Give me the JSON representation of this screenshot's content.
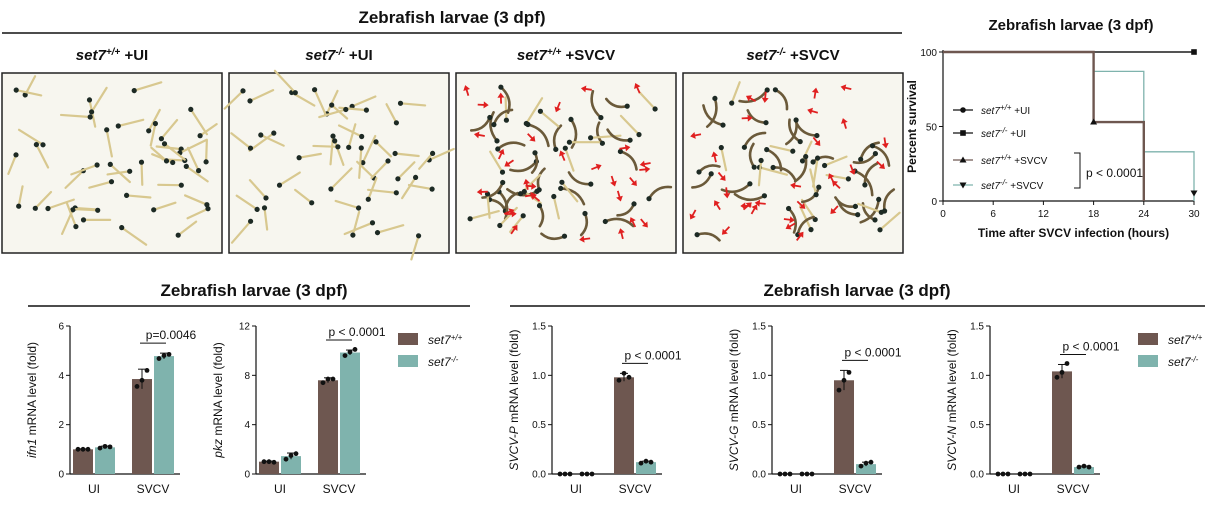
{
  "colors": {
    "wt": "#6e5750",
    "ko": "#7fb3ad",
    "arrow": "#e02020",
    "frame": "#222222",
    "plate": "#f7f6ef"
  },
  "top": {
    "header": "Zebrafish larvae (3 dpf)",
    "panels": [
      {
        "base": "set7",
        "sup": "+/+",
        "suffix": " +UI",
        "infected": false,
        "seed": 11
      },
      {
        "base": "set7",
        "sup": "-/-",
        "suffix": " +UI",
        "infected": false,
        "seed": 23
      },
      {
        "base": "set7",
        "sup": "+/+",
        "suffix": " +SVCV",
        "infected": true,
        "seed": 37
      },
      {
        "base": "set7",
        "sup": "-/-",
        "suffix": " +SVCV",
        "infected": true,
        "seed": 53
      }
    ]
  },
  "survival": {
    "title": "Zebrafish larvae (3 dpf)",
    "ylabel": "Percent survival",
    "xlabel": "Time after SVCV infection (hours)",
    "pvalue": "p < 0.0001"
  },
  "section_headers": {
    "left": "Zebrafish larvae (3 dpf)",
    "right": "Zebrafish larvae (3 dpf)"
  },
  "legend_bars": [
    {
      "base": "set7",
      "sup": "+/+"
    },
    {
      "base": "set7",
      "sup": "-/-"
    }
  ],
  "chart_data": [
    {
      "id": "survival",
      "type": "line",
      "title": "Zebrafish larvae (3 dpf)",
      "xlabel": "Time after SVCV infection (hours)",
      "ylabel": "Percent survival",
      "xlim": [
        0,
        30
      ],
      "ylim": [
        0,
        100
      ],
      "xticks": [
        0,
        6,
        12,
        18,
        24,
        30
      ],
      "yticks": [
        0,
        50,
        100
      ],
      "series": [
        {
          "name": "set7+/+ +UI",
          "marker": "circle",
          "color": "#111111",
          "x": [
            0,
            30
          ],
          "y": [
            100,
            100
          ]
        },
        {
          "name": "set7-/- +UI",
          "marker": "square",
          "color": "#111111",
          "x": [
            0,
            30
          ],
          "y": [
            100,
            100
          ]
        },
        {
          "name": "set7+/+ +SVCV",
          "marker": "triangle-up",
          "color": "#6e5750",
          "x": [
            0,
            18,
            24
          ],
          "y": [
            100,
            53,
            0
          ]
        },
        {
          "name": "set7-/- +SVCV",
          "marker": "triangle-down",
          "color": "#7fb3ad",
          "x": [
            0,
            18,
            24,
            30
          ],
          "y": [
            100,
            87,
            33,
            0
          ]
        }
      ],
      "annotation": "p < 0.0001"
    },
    {
      "id": "ifn1",
      "type": "bar",
      "ylabel_italic": "ifn1",
      "ylabel_rest": " mRNA level (fold)",
      "categories": [
        "UI",
        "SVCV"
      ],
      "ylim": [
        0,
        6
      ],
      "yticks": [
        0,
        2,
        4,
        6
      ],
      "series": [
        {
          "name": "set7+/+",
          "values": [
            1.0,
            3.85
          ],
          "err": [
            0.02,
            0.4
          ],
          "points": [
            [
              1.0,
              1.0,
              1.0
            ],
            [
              3.55,
              3.8,
              4.2
            ]
          ]
        },
        {
          "name": "set7-/-",
          "values": [
            1.08,
            4.78
          ],
          "err": [
            0.05,
            0.12
          ],
          "points": [
            [
              1.05,
              1.12,
              1.1
            ],
            [
              4.68,
              4.8,
              4.85
            ]
          ]
        }
      ],
      "annotation": "p=0.0046"
    },
    {
      "id": "pkz",
      "type": "bar",
      "ylabel_italic": "pkz",
      "ylabel_rest": " mRNA level (fold)",
      "categories": [
        "UI",
        "SVCV"
      ],
      "ylim": [
        0,
        12
      ],
      "yticks": [
        0,
        4,
        8,
        12
      ],
      "series": [
        {
          "name": "set7+/+",
          "values": [
            1.0,
            7.6
          ],
          "err": [
            0.05,
            0.2
          ],
          "points": [
            [
              1.0,
              1.0,
              0.95
            ],
            [
              7.4,
              7.7,
              7.7
            ]
          ]
        },
        {
          "name": "set7-/-",
          "values": [
            1.45,
            9.85
          ],
          "err": [
            0.25,
            0.2
          ],
          "points": [
            [
              1.2,
              1.5,
              1.65
            ],
            [
              9.6,
              9.9,
              10.1
            ]
          ]
        }
      ],
      "annotation": "p < 0.0001"
    },
    {
      "id": "svcvp",
      "type": "bar",
      "ylabel_italic": "SVCV-P",
      "ylabel_rest": " mRNA level (fold)",
      "categories": [
        "UI",
        "SVCV"
      ],
      "ylim": [
        0,
        1.5
      ],
      "yticks": [
        0.0,
        0.5,
        1.0,
        1.5
      ],
      "series": [
        {
          "name": "set7+/+",
          "values": [
            0.0,
            0.98
          ],
          "err": [
            0.0,
            0.04
          ],
          "points": [
            [
              0.0,
              0.0,
              0.0
            ],
            [
              0.95,
              1.02,
              0.98
            ]
          ]
        },
        {
          "name": "set7-/-",
          "values": [
            0.0,
            0.12
          ],
          "err": [
            0.0,
            0.01
          ],
          "points": [
            [
              0.0,
              0.0,
              0.0
            ],
            [
              0.11,
              0.13,
              0.12
            ]
          ]
        }
      ],
      "annotation": "p < 0.0001"
    },
    {
      "id": "svcvg",
      "type": "bar",
      "ylabel_italic": "SVCV-G",
      "ylabel_rest": " mRNA level (fold)",
      "categories": [
        "UI",
        "SVCV"
      ],
      "ylim": [
        0,
        1.5
      ],
      "yticks": [
        0.0,
        0.5,
        1.0,
        1.5
      ],
      "series": [
        {
          "name": "set7+/+",
          "values": [
            0.0,
            0.95
          ],
          "err": [
            0.0,
            0.1
          ],
          "points": [
            [
              0.0,
              0.0,
              0.0
            ],
            [
              0.85,
              0.95,
              1.03
            ]
          ]
        },
        {
          "name": "set7-/-",
          "values": [
            0.0,
            0.1
          ],
          "err": [
            0.0,
            0.02
          ],
          "points": [
            [
              0.0,
              0.0,
              0.0
            ],
            [
              0.08,
              0.11,
              0.12
            ]
          ]
        }
      ],
      "annotation": "p < 0.0001"
    },
    {
      "id": "svcvn",
      "type": "bar",
      "ylabel_italic": "SVCV-N",
      "ylabel_rest": " mRNA level (fold)",
      "categories": [
        "UI",
        "SVCV"
      ],
      "ylim": [
        0,
        1.5
      ],
      "yticks": [
        0.0,
        0.5,
        1.0,
        1.5
      ],
      "series": [
        {
          "name": "set7+/+",
          "values": [
            0.0,
            1.04
          ],
          "err": [
            0.0,
            0.07
          ],
          "points": [
            [
              0.0,
              0.0,
              0.0
            ],
            [
              0.98,
              1.03,
              1.12
            ]
          ]
        },
        {
          "name": "set7-/-",
          "values": [
            0.0,
            0.07
          ],
          "err": [
            0.0,
            0.01
          ],
          "points": [
            [
              0.0,
              0.0,
              0.0
            ],
            [
              0.07,
              0.08,
              0.07
            ]
          ]
        }
      ],
      "annotation": "p < 0.0001"
    }
  ]
}
